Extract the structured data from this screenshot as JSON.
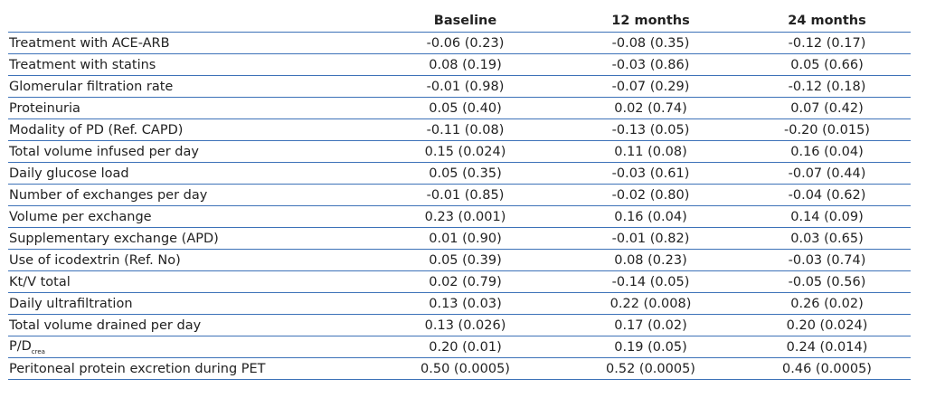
{
  "columns": [
    "",
    "Baseline",
    "12 months",
    "24 months"
  ],
  "rows": [
    {
      "label": "Treatment with ACE-ARB",
      "values": [
        "-0.06 (0.23)",
        "-0.08 (0.35)",
        "-0.12 (0.17)"
      ]
    },
    {
      "label": "Treatment with statins",
      "values": [
        "0.08 (0.19)",
        "-0.03 (0.86)",
        "0.05 (0.66)"
      ]
    },
    {
      "label": "Glomerular filtration rate",
      "values": [
        "-0.01 (0.98)",
        "-0.07 (0.29)",
        "-0.12 (0.18)"
      ]
    },
    {
      "label": "Proteinuria",
      "values": [
        "0.05 (0.40)",
        "0.02 (0.74)",
        "0.07 (0.42)"
      ]
    },
    {
      "label": "Modality of PD (Ref. CAPD)",
      "values": [
        "-0.11 (0.08)",
        "-0.13 (0.05)",
        "-0.20 (0.015)"
      ]
    },
    {
      "label": "Total volume infused per day",
      "values": [
        "0.15 (0.024)",
        "0.11 (0.08)",
        "0.16 (0.04)"
      ]
    },
    {
      "label": "Daily glucose load",
      "values": [
        "0.05 (0.35)",
        "-0.03 (0.61)",
        "-0.07 (0.44)"
      ]
    },
    {
      "label": "Number of exchanges per day",
      "values": [
        "-0.01 (0.85)",
        "-0.02 (0.80)",
        "-0.04 (0.62)"
      ]
    },
    {
      "label": "Volume per exchange",
      "values": [
        "0.23 (0.001)",
        "0.16 (0.04)",
        "0.14 (0.09)"
      ]
    },
    {
      "label": "Supplementary exchange (APD)",
      "values": [
        "0.01 (0.90)",
        "-0.01 (0.82)",
        "0.03 (0.65)"
      ]
    },
    {
      "label": "Use of icodextrin (Ref. No)",
      "values": [
        "0.05 (0.39)",
        "0.08 (0.23)",
        "-0.03 (0.74)"
      ]
    },
    {
      "label": "Kt/V total",
      "values": [
        "0.02 (0.79)",
        "-0.14 (0.05)",
        "-0.05 (0.56)"
      ]
    },
    {
      "label": "Daily ultrafiltration",
      "values": [
        "0.13 (0.03)",
        "0.22 (0.008)",
        "0.26 (0.02)"
      ]
    },
    {
      "label": "Total volume drained per day",
      "values": [
        "0.13 (0.026)",
        "0.17 (0.02)",
        "0.20 (0.024)"
      ]
    },
    {
      "label": "P/D",
      "label_sub": "crea",
      "values": [
        "0.20 (0.01)",
        "0.19 (0.05)",
        "0.24 (0.014)"
      ]
    },
    {
      "label": "Peritoneal protein excretion during PET",
      "values": [
        "0.50 (0.0005)",
        "0.52 (0.0005)",
        "0.46 (0.0005)"
      ]
    }
  ]
}
